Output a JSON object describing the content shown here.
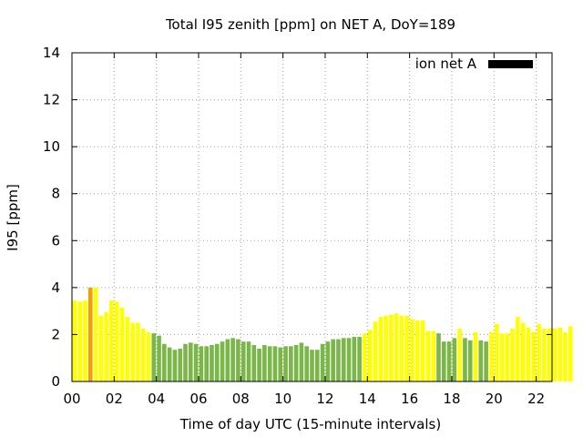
{
  "chart_data": {
    "type": "bar",
    "title": "Total I95 zenith [ppm] on NET A, DoY=189",
    "xlabel": "Time of day UTC (15-minute intervals)",
    "ylabel": "I95 [ppm]",
    "xlim": [
      0,
      22.75
    ],
    "ylim": [
      0,
      14
    ],
    "x_ticks": [
      "00",
      "02",
      "04",
      "06",
      "08",
      "10",
      "12",
      "14",
      "16",
      "18",
      "20",
      "22"
    ],
    "y_ticks": [
      "0",
      "2",
      "4",
      "6",
      "8",
      "10",
      "12",
      "14"
    ],
    "grid": true,
    "legend": {
      "label": "ion net A",
      "color": "#000000",
      "placement": "top-right"
    },
    "colors": {
      "green": "#7ab648",
      "yellow": "#ffff00",
      "orange": "#ff9900"
    },
    "x_start": 0.125,
    "x_step": 0.25,
    "values": [
      3.45,
      3.4,
      3.45,
      4.0,
      4.0,
      2.8,
      2.95,
      3.45,
      3.4,
      3.15,
      2.75,
      2.5,
      2.5,
      2.25,
      2.1,
      2.05,
      1.95,
      1.6,
      1.45,
      1.35,
      1.4,
      1.6,
      1.65,
      1.6,
      1.5,
      1.5,
      1.55,
      1.6,
      1.7,
      1.8,
      1.85,
      1.8,
      1.7,
      1.7,
      1.55,
      1.4,
      1.55,
      1.5,
      1.5,
      1.45,
      1.5,
      1.5,
      1.55,
      1.65,
      1.5,
      1.35,
      1.35,
      1.6,
      1.7,
      1.8,
      1.8,
      1.85,
      1.85,
      1.9,
      1.9,
      2.05,
      2.2,
      2.55,
      2.75,
      2.8,
      2.85,
      2.9,
      2.8,
      2.8,
      2.65,
      2.6,
      2.6,
      2.15,
      2.15,
      2.05,
      1.7,
      1.7,
      1.85,
      2.25,
      1.85,
      1.75,
      2.1,
      1.75,
      1.7,
      2.1,
      2.45,
      2.05,
      2.05,
      2.25,
      2.75,
      2.5,
      2.3,
      2.1,
      2.45,
      2.25,
      2.25,
      2.25,
      2.3,
      2.1,
      2.35
    ],
    "bar_colors": [
      "yellow",
      "yellow",
      "yellow",
      "orange",
      "yellow",
      "yellow",
      "yellow",
      "yellow",
      "yellow",
      "yellow",
      "yellow",
      "yellow",
      "yellow",
      "yellow",
      "yellow",
      "green",
      "green",
      "green",
      "green",
      "green",
      "green",
      "green",
      "green",
      "green",
      "green",
      "green",
      "green",
      "green",
      "green",
      "green",
      "green",
      "green",
      "green",
      "green",
      "green",
      "green",
      "green",
      "green",
      "green",
      "green",
      "green",
      "green",
      "green",
      "green",
      "green",
      "green",
      "green",
      "green",
      "green",
      "green",
      "green",
      "green",
      "green",
      "green",
      "green",
      "yellow",
      "yellow",
      "yellow",
      "yellow",
      "yellow",
      "yellow",
      "yellow",
      "yellow",
      "yellow",
      "yellow",
      "yellow",
      "yellow",
      "yellow",
      "yellow",
      "green",
      "green",
      "green",
      "green",
      "yellow",
      "green",
      "green",
      "yellow",
      "green",
      "green",
      "yellow",
      "yellow",
      "yellow",
      "yellow",
      "yellow",
      "yellow",
      "yellow",
      "yellow",
      "yellow",
      "yellow",
      "yellow",
      "yellow",
      "yellow",
      "yellow",
      "yellow",
      "yellow"
    ]
  }
}
